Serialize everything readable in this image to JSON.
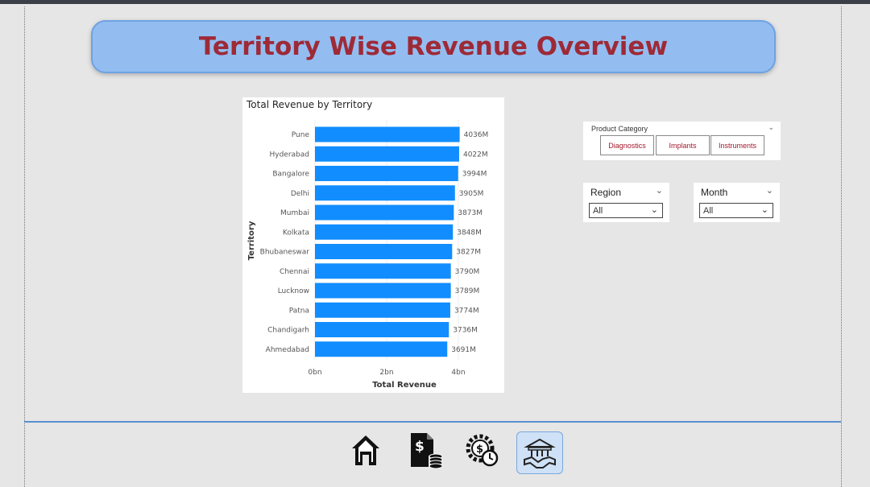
{
  "header": {
    "title": "Territory Wise Revenue Overview"
  },
  "chart_data": {
    "type": "bar",
    "orientation": "horizontal",
    "title": "Total Revenue by Territory",
    "xlabel": "Total Revenue",
    "ylabel": "Territory",
    "categories": [
      "Pune",
      "Hyderabad",
      "Bangalore",
      "Delhi",
      "Mumbai",
      "Kolkata",
      "Bhubaneswar",
      "Chennai",
      "Lucknow",
      "Patna",
      "Chandigarh",
      "Ahmedabad"
    ],
    "values": [
      4036,
      4022,
      3994,
      3905,
      3873,
      3848,
      3827,
      3790,
      3789,
      3774,
      3736,
      3691
    ],
    "value_labels": [
      "4036M",
      "4022M",
      "3994M",
      "3905M",
      "3873M",
      "3848M",
      "3827M",
      "3790M",
      "3789M",
      "3774M",
      "3736M",
      "3691M"
    ],
    "xticks": [
      "0bn",
      "2bn",
      "4bn"
    ],
    "xlim": [
      0,
      4000
    ],
    "bar_color": "#118dff"
  },
  "slicers": {
    "product_category": {
      "title": "Product Category",
      "options": [
        "Diagnostics",
        "Implants",
        "Instruments"
      ]
    },
    "region": {
      "title": "Region",
      "value": "All"
    },
    "month": {
      "title": "Month",
      "value": "All"
    }
  },
  "nav": {
    "items": [
      {
        "icon": "home-icon"
      },
      {
        "icon": "invoice-coins-icon"
      },
      {
        "icon": "gear-clock-icon"
      },
      {
        "icon": "handshake-building-icon"
      }
    ]
  },
  "colors": {
    "title_text": "#9e2a37",
    "title_bg": "#93bdf0",
    "accent": "#5b8fd0"
  }
}
